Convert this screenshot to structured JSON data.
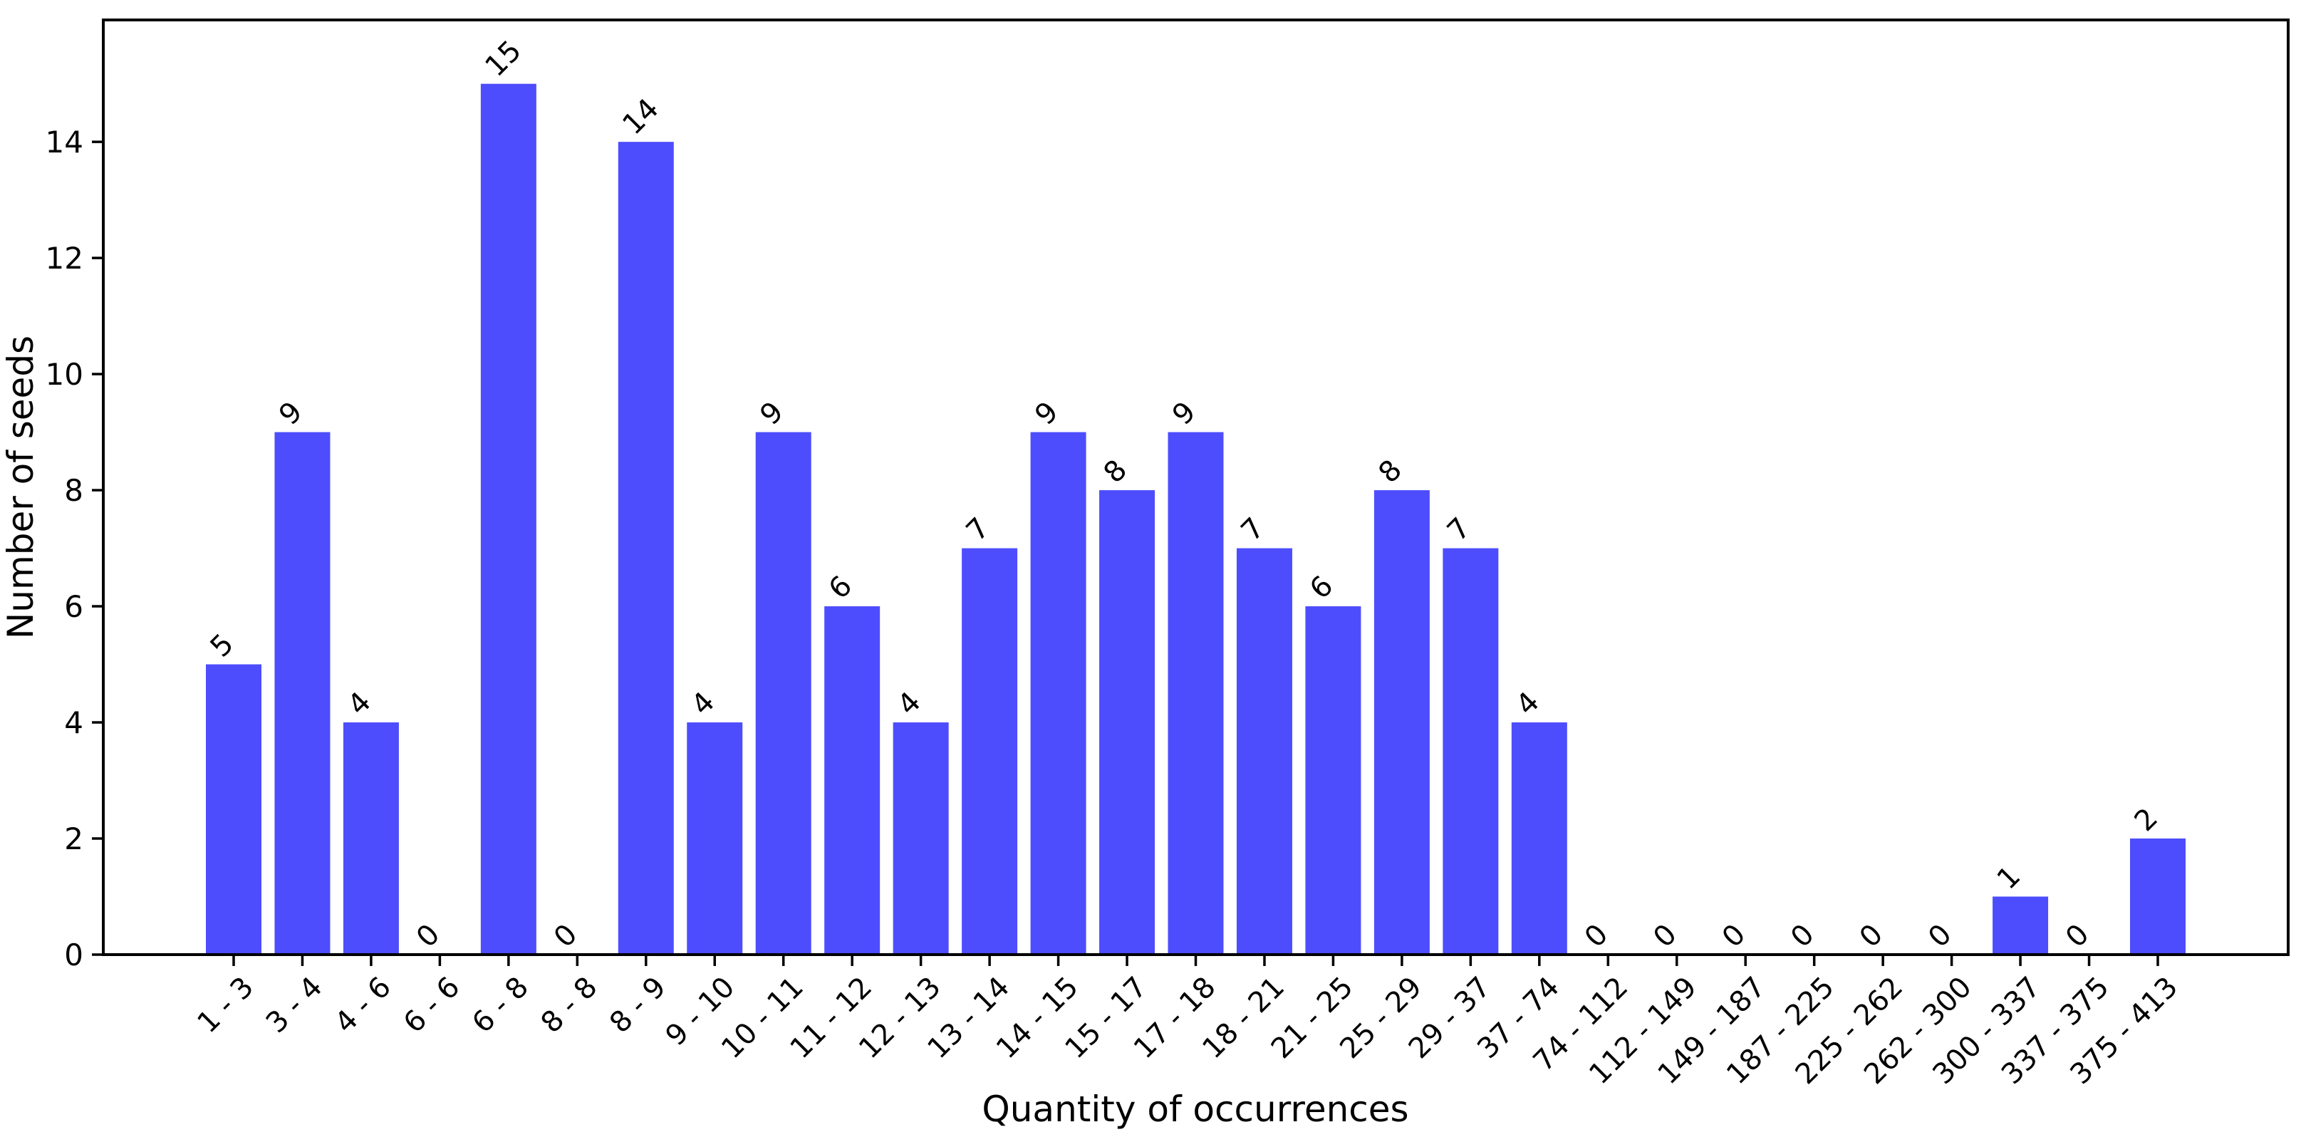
{
  "chart_data": {
    "type": "bar",
    "title": "",
    "xlabel": "Quantity of occurrences",
    "ylabel": "Number of seeds",
    "categories": [
      "1 - 3",
      "3 - 4",
      "4 - 6",
      "6 - 6",
      "6 - 8",
      "8 - 8",
      "8 - 9",
      "9 - 10",
      "10 - 11",
      "11 - 12",
      "12 - 13",
      "13 - 14",
      "14 - 15",
      "15 - 17",
      "17 - 18",
      "18 - 21",
      "21 - 25",
      "25 - 29",
      "29 - 37",
      "37 - 74",
      "74 - 112",
      "112 - 149",
      "149 - 187",
      "187 - 225",
      "225 - 262",
      "262 - 300",
      "300 - 337",
      "337 - 375",
      "375 - 413"
    ],
    "values": [
      5,
      9,
      4,
      0,
      15,
      0,
      14,
      4,
      9,
      6,
      4,
      7,
      9,
      8,
      9,
      7,
      6,
      8,
      7,
      4,
      0,
      0,
      0,
      0,
      0,
      0,
      1,
      0,
      2
    ],
    "value_labels": [
      "5",
      "9",
      "4",
      "0",
      "15",
      "0",
      "14",
      "4",
      "9",
      "6",
      "4",
      "7",
      "9",
      "8",
      "9",
      "7",
      "6",
      "8",
      "7",
      "4",
      "0",
      "0",
      "0",
      "0",
      "0",
      "0",
      "1",
      "0",
      "2"
    ],
    "bar_color": "#4d4dfe",
    "axis_color": "#000000",
    "text_color": "#000000",
    "ylim": [
      0,
      16.1
    ],
    "yticks": [
      "0",
      "2",
      "4",
      "6",
      "8",
      "10",
      "12",
      "14"
    ],
    "grid": "off",
    "legend": "none",
    "xtick_rotation_deg": 45,
    "value_label_rotation_deg": 45
  }
}
